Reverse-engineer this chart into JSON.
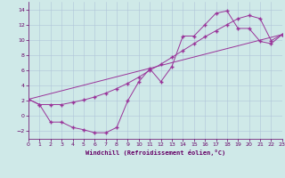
{
  "bg_color": "#cfe9e8",
  "line_color": "#993399",
  "grid_color": "#b0c4d8",
  "xlim": [
    0,
    23
  ],
  "ylim": [
    -3.0,
    15.0
  ],
  "xticks": [
    0,
    1,
    2,
    3,
    4,
    5,
    6,
    7,
    8,
    9,
    10,
    11,
    12,
    13,
    14,
    15,
    16,
    17,
    18,
    19,
    20,
    21,
    22,
    23
  ],
  "yticks": [
    -2,
    0,
    2,
    4,
    6,
    8,
    10,
    12,
    14
  ],
  "xlabel": "Windchill (Refroidissement éolien,°C)",
  "line1_x": [
    0,
    1,
    2,
    3,
    4,
    5,
    6,
    7,
    8,
    9,
    10,
    11,
    12,
    13,
    14,
    15,
    16,
    17,
    18,
    19,
    20,
    21,
    22,
    23
  ],
  "line1_y": [
    2.2,
    1.5,
    1.5,
    1.5,
    1.8,
    2.1,
    2.5,
    3.0,
    3.6,
    4.3,
    5.1,
    6.0,
    6.8,
    7.7,
    8.6,
    9.5,
    10.4,
    11.2,
    12.0,
    12.8,
    13.2,
    12.8,
    9.9,
    10.7
  ],
  "line2_x": [
    0,
    1,
    2,
    3,
    4,
    5,
    6,
    7,
    8,
    9,
    10,
    11,
    12,
    13,
    14,
    15,
    16,
    17,
    18,
    19,
    20,
    21,
    22,
    23
  ],
  "line2_y": [
    2.2,
    1.5,
    -0.8,
    -0.8,
    -1.5,
    -1.8,
    -2.2,
    -2.2,
    -1.5,
    2.0,
    4.5,
    6.2,
    4.5,
    6.5,
    10.5,
    10.5,
    12.0,
    13.5,
    13.8,
    11.5,
    11.5,
    9.8,
    9.5,
    10.7
  ],
  "line3_x": [
    0,
    23
  ],
  "line3_y": [
    2.2,
    10.7
  ],
  "tick_color": "#660066",
  "tick_fontsize": 4.5,
  "xlabel_fontsize": 5.0,
  "linewidth": 0.7,
  "markersize": 2.5
}
